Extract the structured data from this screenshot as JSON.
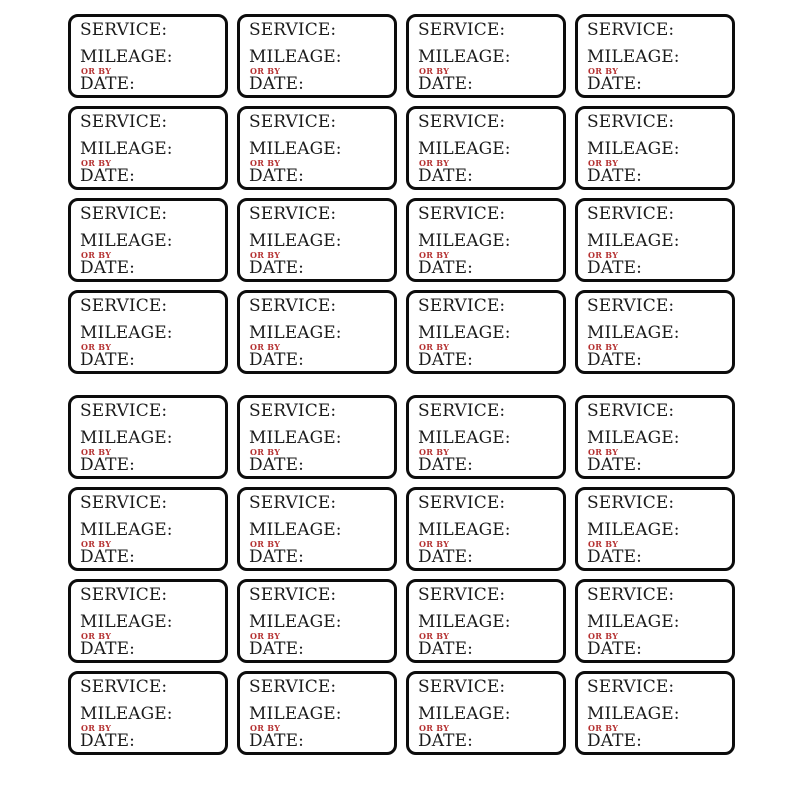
{
  "sheet": {
    "columns": 4,
    "rows": 8,
    "total_labels": 32,
    "colors": {
      "background": "#ffffff",
      "label_border": "#0c0c0c",
      "text": "#1b1b1b",
      "or_by_red": "#b53232"
    }
  },
  "label": {
    "service": "SERVICE:",
    "mileage": "MILEAGE:",
    "or_by": "OR BY",
    "date": "DATE:"
  }
}
